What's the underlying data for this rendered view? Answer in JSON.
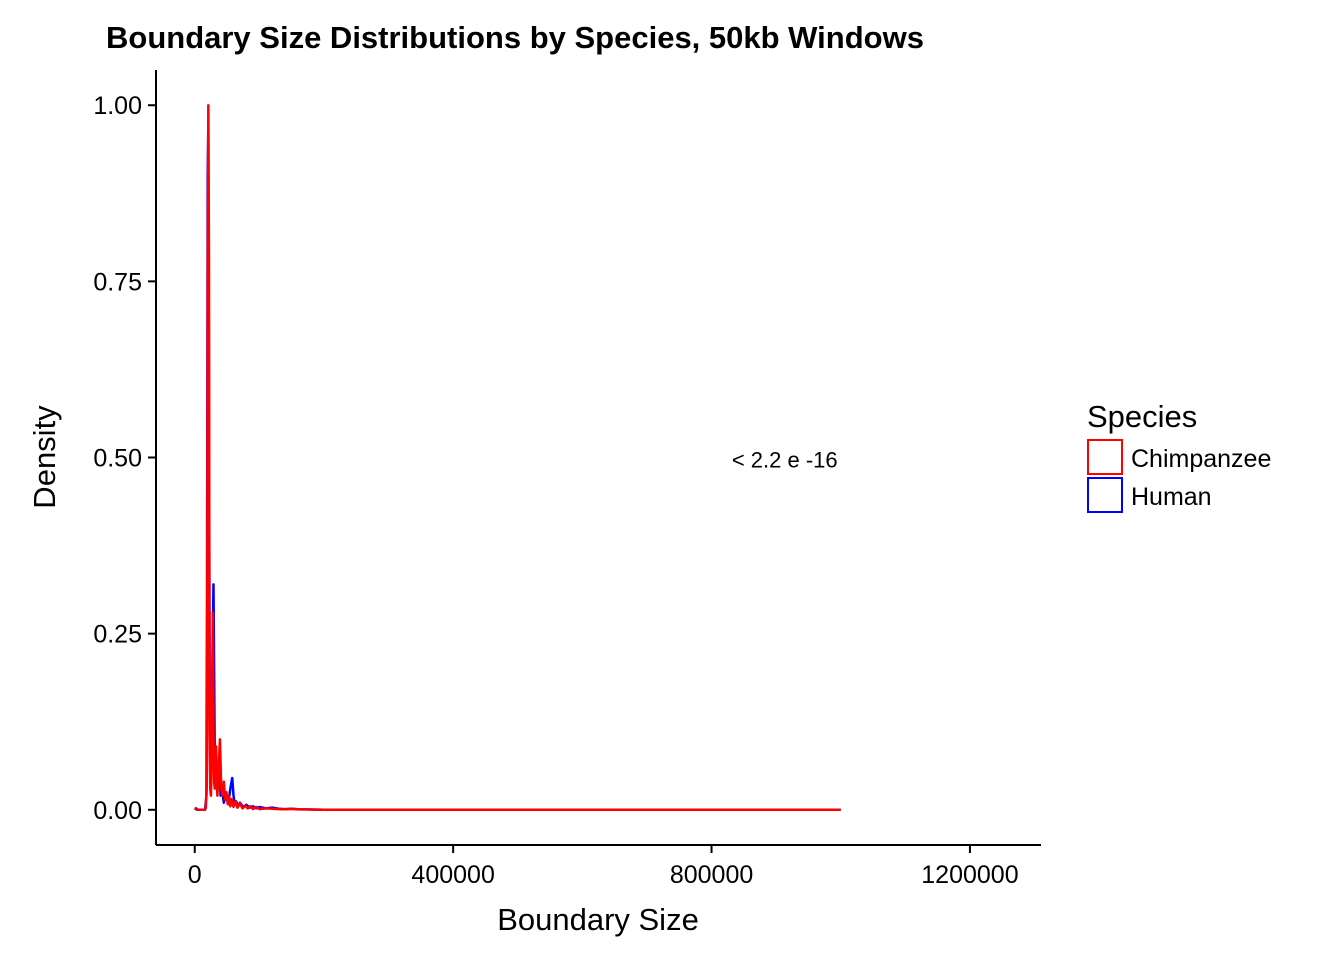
{
  "chart_data": {
    "type": "line",
    "title": "Boundary Size Distributions by Species, 50kb Windows",
    "xlabel": "Boundary Size",
    "ylabel": "Density",
    "xlim": [
      -60000,
      1310000
    ],
    "ylim": [
      -0.05,
      1.05
    ],
    "x_ticks": [
      0,
      400000,
      800000,
      1200000
    ],
    "x_tick_labels": [
      "0",
      "400000",
      "800000",
      "1200000"
    ],
    "y_ticks": [
      0,
      0.25,
      0.5,
      0.75,
      1.0
    ],
    "y_tick_labels": [
      "0.00",
      "0.25",
      "0.50",
      "0.75",
      "1.00"
    ],
    "grid": false,
    "annotation": {
      "text": "< 2.2 e -16",
      "x": 1000000,
      "y": 0.5
    },
    "legend": {
      "title": "Species",
      "position": "right"
    },
    "series": [
      {
        "name": "Chimpanzee",
        "color": "#FF0000",
        "x": [
          0,
          4000,
          5000,
          6000,
          8000,
          9000,
          10000,
          12000,
          15000,
          17000,
          18500,
          19000,
          19500,
          20000,
          21000,
          22000,
          22500,
          23000,
          24000,
          25000,
          26000,
          27000,
          28000,
          29000,
          30000,
          31000,
          32000,
          33000,
          34000,
          35000,
          37000,
          39000,
          41000,
          43000,
          45000,
          47000,
          49000,
          51000,
          53000,
          55000,
          57000,
          60000,
          63000,
          66000,
          70000,
          74000,
          78000,
          82000,
          86000,
          90000,
          95000,
          100000,
          110000,
          120000,
          130000,
          140000,
          150000,
          160000,
          170000,
          180000,
          200000,
          300000,
          500000,
          700000,
          900000,
          1000000
        ],
        "y": [
          0.003,
          0.001,
          0.0,
          0.0,
          0.0,
          0.0,
          0.0,
          0.0,
          0.0,
          0.002,
          0.03,
          0.1,
          0.4,
          0.75,
          1.0,
          0.78,
          0.35,
          0.12,
          0.03,
          0.02,
          0.06,
          0.18,
          0.28,
          0.12,
          0.04,
          0.03,
          0.06,
          0.09,
          0.05,
          0.02,
          0.06,
          0.1,
          0.03,
          0.02,
          0.04,
          0.015,
          0.025,
          0.008,
          0.02,
          0.005,
          0.015,
          0.004,
          0.012,
          0.003,
          0.009,
          0.002,
          0.006,
          0.002,
          0.005,
          0.001,
          0.004,
          0.001,
          0.002,
          0.0015,
          0.001,
          0.0008,
          0.0012,
          0.0005,
          0.0007,
          0.0003,
          0.0001,
          0.0,
          0.0,
          0.0,
          0.0,
          0.0
        ]
      },
      {
        "name": "Human",
        "color": "#0000FF",
        "x": [
          0,
          4000,
          8000,
          12000,
          16000,
          18000,
          19000,
          20000,
          21000,
          22000,
          23000,
          24000,
          25000,
          26000,
          28000,
          29000,
          30000,
          31000,
          32000,
          33000,
          35000,
          38000,
          40000,
          42000,
          45000,
          48000,
          50000,
          52000,
          55000,
          58000,
          60000,
          62000,
          64000,
          67000,
          70000,
          75000,
          80000,
          85000,
          90000,
          95000,
          100000,
          110000,
          120000,
          130000,
          140000,
          150000,
          160000,
          170000,
          180000,
          200000,
          400000,
          700000,
          1000000
        ],
        "y": [
          0.002,
          0.0,
          0.0,
          0.0,
          0.0,
          0.02,
          0.3,
          0.9,
          0.97,
          0.6,
          0.2,
          0.05,
          0.03,
          0.1,
          0.25,
          0.32,
          0.2,
          0.06,
          0.04,
          0.07,
          0.04,
          0.06,
          0.02,
          0.03,
          0.01,
          0.02,
          0.015,
          0.008,
          0.03,
          0.045,
          0.02,
          0.008,
          0.012,
          0.005,
          0.01,
          0.004,
          0.007,
          0.003,
          0.005,
          0.002,
          0.004,
          0.002,
          0.003,
          0.0015,
          0.001,
          0.0015,
          0.0007,
          0.0005,
          0.0003,
          0.0001,
          0.0,
          0.0,
          0.0
        ]
      }
    ]
  }
}
